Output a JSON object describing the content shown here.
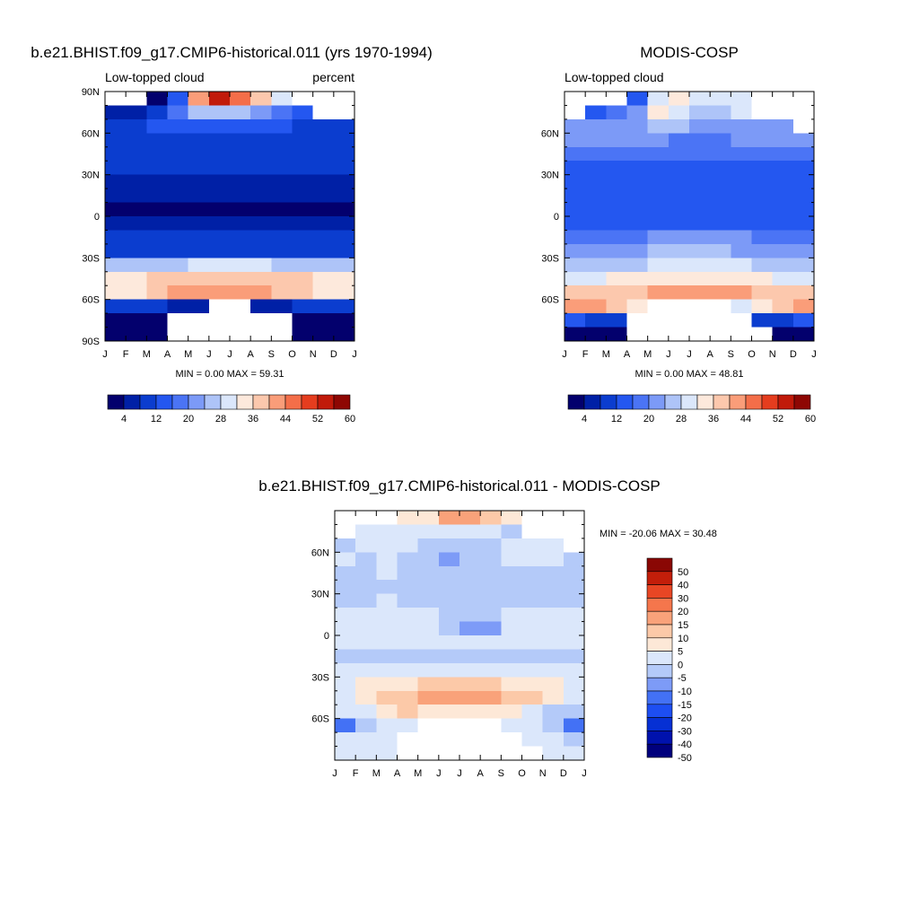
{
  "chart_data": [
    {
      "type": "heatmap",
      "title": "b.e21.BHIST.f09_g17.CMIP6-historical.011 (yrs 1970-1994)",
      "subtitle_left": "Low-topped cloud",
      "subtitle_right": "percent",
      "x": [
        "J",
        "F",
        "M",
        "A",
        "M",
        "J",
        "J",
        "A",
        "S",
        "O",
        "N",
        "D",
        "J"
      ],
      "y_ticks": [
        "90N",
        "60N",
        "30N",
        "0",
        "30S",
        "60S",
        "90S"
      ],
      "y_values": [
        90,
        60,
        30,
        0,
        -30,
        -60,
        -90
      ],
      "ylim": [
        -90,
        90
      ],
      "stats": "MIN =   0.00 MAX =  59.31",
      "colorbar": {
        "labels": [
          "4",
          "12",
          "20",
          "28",
          "36",
          "44",
          "52",
          "60"
        ],
        "colors": [
          "#03006d",
          "#0020a6",
          "#0b3dcf",
          "#2457f0",
          "#4b74f5",
          "#7c9af7",
          "#aec4f8",
          "#dbe7fb",
          "#fde9dc",
          "#fcc8ad",
          "#fa9d79",
          "#f46e49",
          "#e53d1e",
          "#c11a0a",
          "#8e0703"
        ]
      },
      "field": {
        "row_lats": [
          85,
          75,
          65,
          55,
          45,
          35,
          25,
          15,
          5,
          -5,
          -15,
          -25,
          -35,
          -45,
          -55,
          -65,
          -75,
          -85
        ],
        "rows": [
          [
            null,
            null,
            3,
            13,
            40,
            52,
            46,
            38,
            30,
            null,
            null,
            null
          ],
          [
            5,
            7,
            10,
            17,
            24,
            27,
            24,
            20,
            17,
            14,
            null,
            null
          ],
          [
            10,
            11,
            12,
            13,
            14,
            14,
            13,
            12,
            12,
            11,
            11,
            10
          ],
          [
            10,
            10,
            11,
            11,
            11,
            11,
            11,
            11,
            10,
            10,
            10,
            10
          ],
          [
            9,
            9,
            9,
            9,
            9,
            9,
            9,
            9,
            9,
            9,
            9,
            9
          ],
          [
            8,
            8,
            8,
            8,
            8,
            8,
            8,
            8,
            8,
            8,
            8,
            8
          ],
          [
            7,
            7,
            7,
            7,
            6,
            6,
            6,
            6,
            7,
            7,
            7,
            7
          ],
          [
            5,
            5,
            5,
            4,
            4,
            4,
            4,
            4,
            5,
            5,
            5,
            5
          ],
          [
            3,
            3,
            2,
            2,
            2,
            2,
            2,
            2,
            2,
            3,
            3,
            3
          ],
          [
            7,
            7,
            7,
            6,
            6,
            6,
            6,
            6,
            6,
            7,
            7,
            7
          ],
          [
            8,
            8,
            9,
            9,
            10,
            10,
            10,
            10,
            9,
            9,
            8,
            8
          ],
          [
            10,
            10,
            10,
            10,
            11,
            11,
            11,
            11,
            10,
            10,
            10,
            10
          ],
          [
            24,
            24,
            26,
            27,
            28,
            28,
            28,
            28,
            27,
            26,
            25,
            24
          ],
          [
            34,
            35,
            37,
            38,
            39,
            39,
            39,
            38,
            37,
            36,
            35,
            34
          ],
          [
            33,
            35,
            38,
            40,
            40,
            40,
            40,
            40,
            39,
            37,
            35,
            33
          ],
          [
            11,
            10,
            9,
            7,
            6,
            null,
            null,
            5,
            7,
            8,
            9,
            10
          ],
          [
            2,
            2,
            2,
            null,
            null,
            null,
            null,
            null,
            null,
            2,
            2,
            2
          ],
          [
            1,
            1,
            1,
            null,
            null,
            null,
            null,
            null,
            null,
            1,
            1,
            1
          ]
        ]
      }
    },
    {
      "type": "heatmap",
      "title": "MODIS-COSP",
      "subtitle_left": "Low-topped cloud",
      "subtitle_right": "",
      "x": [
        "J",
        "F",
        "M",
        "A",
        "M",
        "J",
        "J",
        "A",
        "S",
        "O",
        "N",
        "D",
        "J"
      ],
      "y_ticks": [
        "60N",
        "30N",
        "0",
        "30S",
        "60S"
      ],
      "y_values": [
        60,
        30,
        0,
        -30,
        -60
      ],
      "ylim": [
        -90,
        90
      ],
      "stats": "MIN =   0.00 MAX =  48.81",
      "colorbar": {
        "labels": [
          "4",
          "12",
          "20",
          "28",
          "36",
          "44",
          "52",
          "60"
        ],
        "colors": [
          "#03006d",
          "#0020a6",
          "#0b3dcf",
          "#2457f0",
          "#4b74f5",
          "#7c9af7",
          "#aec4f8",
          "#dbe7fb",
          "#fde9dc",
          "#fcc8ad",
          "#fa9d79",
          "#f46e49",
          "#e53d1e",
          "#c11a0a",
          "#8e0703"
        ]
      },
      "field": {
        "row_lats": [
          85,
          75,
          65,
          55,
          45,
          35,
          25,
          15,
          5,
          -5,
          -15,
          -25,
          -35,
          -45,
          -55,
          -65,
          -75,
          -85
        ],
        "rows": [
          [
            null,
            null,
            null,
            13,
            30,
            33,
            30,
            30,
            28,
            null,
            null,
            null
          ],
          [
            null,
            14,
            18,
            23,
            32,
            28,
            24,
            26,
            30,
            null,
            null,
            null
          ],
          [
            22,
            20,
            20,
            22,
            24,
            24,
            22,
            22,
            22,
            20,
            20,
            null
          ],
          [
            20,
            20,
            20,
            20,
            20,
            19,
            19,
            19,
            20,
            20,
            20,
            20
          ],
          [
            18,
            17,
            17,
            17,
            16,
            16,
            16,
            16,
            17,
            17,
            17,
            18
          ],
          [
            15,
            15,
            15,
            15,
            15,
            15,
            15,
            15,
            15,
            15,
            15,
            15
          ],
          [
            13,
            13,
            13,
            13,
            13,
            13,
            13,
            13,
            13,
            13,
            13,
            13
          ],
          [
            12,
            12,
            12,
            12,
            12,
            12,
            12,
            12,
            12,
            12,
            12,
            12
          ],
          [
            13,
            13,
            14,
            14,
            14,
            14,
            14,
            14,
            14,
            13,
            13,
            13
          ],
          [
            15,
            15,
            15,
            15,
            15,
            15,
            15,
            15,
            15,
            15,
            15,
            15
          ],
          [
            16,
            17,
            18,
            19,
            20,
            20,
            20,
            20,
            20,
            18,
            17,
            16
          ],
          [
            20,
            21,
            22,
            23,
            24,
            24,
            24,
            24,
            23,
            22,
            21,
            20
          ],
          [
            26,
            26,
            26,
            27,
            28,
            28,
            28,
            28,
            28,
            27,
            26,
            26
          ],
          [
            30,
            31,
            32,
            33,
            33,
            33,
            33,
            33,
            33,
            32,
            31,
            30
          ],
          [
            36,
            36,
            37,
            38,
            40,
            42,
            42,
            41,
            40,
            39,
            38,
            37
          ],
          [
            42,
            40,
            36,
            32,
            null,
            null,
            null,
            null,
            30,
            34,
            38,
            42
          ],
          [
            12,
            10,
            8,
            null,
            null,
            null,
            null,
            null,
            null,
            8,
            10,
            12
          ],
          [
            3,
            2,
            2,
            null,
            null,
            null,
            null,
            null,
            null,
            null,
            2,
            2
          ]
        ]
      }
    },
    {
      "type": "heatmap",
      "title": "b.e21.BHIST.f09_g17.CMIP6-historical.011 - MODIS-COSP",
      "x": [
        "J",
        "F",
        "M",
        "A",
        "M",
        "J",
        "J",
        "A",
        "S",
        "O",
        "N",
        "D",
        "J"
      ],
      "y_ticks": [
        "60N",
        "30N",
        "0",
        "30S",
        "60S"
      ],
      "y_values": [
        60,
        30,
        0,
        -30,
        -60
      ],
      "ylim": [
        -90,
        90
      ],
      "stats": "MIN = -20.06 MAX =  30.48",
      "colorbar": {
        "labels": [
          "50",
          "40",
          "30",
          "20",
          "15",
          "10",
          "5",
          "0",
          "-5",
          "-10",
          "-15",
          "-20",
          "-30",
          "-40",
          "-50"
        ],
        "levels": [
          -60,
          -50,
          -40,
          -30,
          -20,
          -15,
          -10,
          -5,
          0,
          5,
          10,
          15,
          20,
          30,
          40,
          50,
          60
        ],
        "colors": [
          "#00007d",
          "#0012ad",
          "#0630d4",
          "#1d4ef2",
          "#4371f5",
          "#7d9bf7",
          "#b4caf9",
          "#dbe7fb",
          "#fde8d7",
          "#fcc9a8",
          "#f9a27a",
          "#f5764c",
          "#e84624",
          "#c31e0a",
          "#8a0704"
        ]
      },
      "field": {
        "row_lats": [
          85,
          75,
          65,
          55,
          45,
          35,
          25,
          15,
          5,
          -5,
          -15,
          -25,
          -35,
          -45,
          -55,
          -65,
          -75,
          -85
        ],
        "rows": [
          [
            null,
            null,
            null,
            1,
            4,
            14,
            12,
            8,
            2,
            null,
            null,
            null
          ],
          [
            null,
            -3,
            -4,
            -3,
            -4,
            -1,
            -2,
            -4,
            -6,
            null,
            null,
            null
          ],
          [
            -7,
            -5,
            -4,
            -5,
            -7,
            -8,
            -8,
            -6,
            -5,
            -4,
            -4,
            null
          ],
          [
            -5,
            -6,
            -5,
            -6,
            -9,
            -12,
            -10,
            -6,
            -5,
            -5,
            -5,
            -6
          ],
          [
            -6,
            -6,
            -5,
            -6,
            -7,
            -7,
            -7,
            -6,
            -6,
            -6,
            -6,
            -6
          ],
          [
            -6,
            -6,
            -6,
            -6,
            -6,
            -6,
            -6,
            -6,
            -6,
            -6,
            -6,
            -6
          ],
          [
            -6,
            -6,
            -5,
            -6,
            -6,
            -6,
            -6,
            -6,
            -6,
            -6,
            -6,
            -6
          ],
          [
            -4,
            -4,
            -4,
            -4,
            -4,
            -6,
            -8,
            -7,
            -5,
            -4,
            -4,
            -4
          ],
          [
            -3,
            -3,
            -3,
            -3,
            -3,
            -6,
            -11,
            -12,
            -4,
            -3,
            -3,
            -3
          ],
          [
            -2,
            -2,
            -2,
            -2,
            -2,
            -2,
            -2,
            -2,
            -2,
            -2,
            -2,
            -2
          ],
          [
            -6,
            -6,
            -6,
            -6,
            -6,
            -6,
            -6,
            -6,
            -6,
            -6,
            -6,
            -6
          ],
          [
            -4,
            -4,
            -4,
            -4,
            -4,
            -4,
            -4,
            -4,
            -4,
            -4,
            -4,
            -4
          ],
          [
            -1,
            2,
            3,
            4,
            6,
            7,
            7,
            6,
            4,
            3,
            1,
            -1
          ],
          [
            -2,
            3,
            5,
            7,
            10,
            12,
            12,
            10,
            7,
            5,
            2,
            -1
          ],
          [
            -5,
            -1,
            4,
            6,
            4,
            3,
            3,
            3,
            1,
            -3,
            -7,
            -10
          ],
          [
            -18,
            -8,
            -4,
            -2,
            null,
            null,
            null,
            null,
            -2,
            -4,
            -8,
            -16
          ],
          [
            -4,
            -3,
            -2,
            null,
            null,
            null,
            null,
            null,
            null,
            -2,
            -3,
            -6
          ],
          [
            -3,
            -2,
            -2,
            null,
            null,
            null,
            null,
            null,
            null,
            null,
            -2,
            -2
          ]
        ]
      }
    }
  ]
}
